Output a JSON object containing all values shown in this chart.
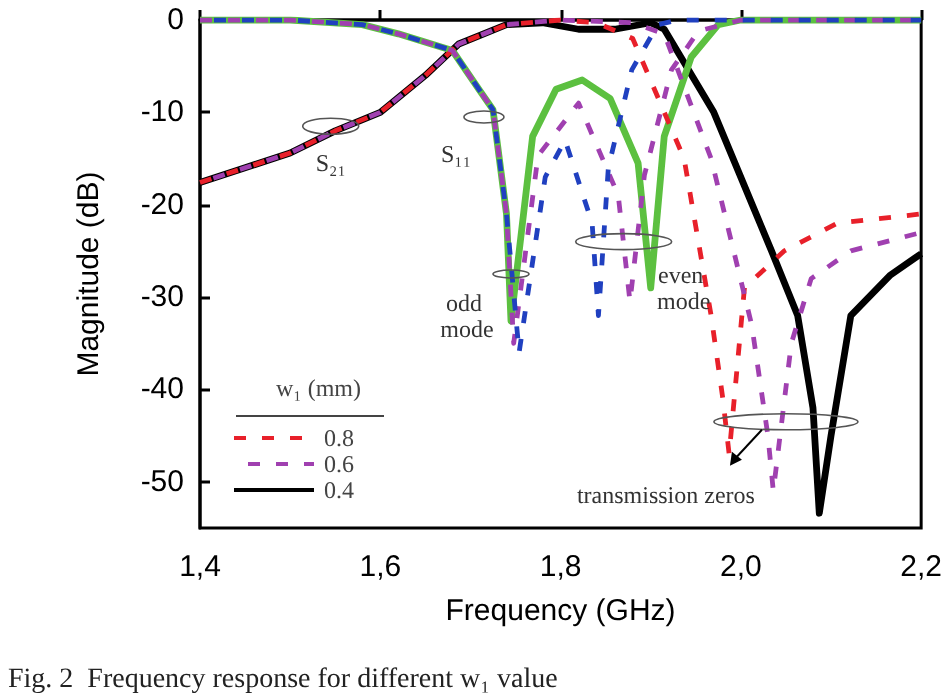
{
  "chart_data": {
    "type": "line",
    "xlabel": "Frequency (GHz)",
    "ylabel": "Magnitude (dB)",
    "legend_title": "w₁ (mm)",
    "xlim": [
      1.4,
      2.2
    ],
    "xticks": [
      {
        "value": 1.4,
        "label": "1,4"
      },
      {
        "value": 1.6,
        "label": "1,6"
      },
      {
        "value": 1.8,
        "label": "1,8"
      },
      {
        "value": 2.0,
        "label": "2,0"
      },
      {
        "value": 2.2,
        "label": "2,2"
      }
    ],
    "ylim": [
      -55,
      0
    ],
    "yticks": [
      -50,
      -40,
      -30,
      -20,
      -10,
      0
    ],
    "grid": false,
    "legend": "bottom left",
    "marker": "none",
    "series": [
      {
        "name": "0.8",
        "color": "#e8202a",
        "line_style": "dashed",
        "x": [
          1.4,
          1.45,
          1.5,
          1.55,
          1.6,
          1.65,
          1.687,
          1.74,
          1.8,
          1.84,
          1.88,
          1.937,
          1.967,
          1.98,
          1.987,
          2.004,
          2.048,
          2.107,
          2.2
        ],
        "values": [
          -17.6,
          -16,
          -14.4,
          -12,
          -10,
          -6,
          -2.6,
          -0.5,
          0,
          -0.3,
          -2,
          -15,
          -32,
          -41,
          -47,
          -29,
          -25,
          -22,
          -21
        ]
      },
      {
        "name": "0.6",
        "color": "#a040b0",
        "line_style": "dashed",
        "x": [
          1.4,
          1.45,
          1.5,
          1.55,
          1.6,
          1.65,
          1.687,
          1.74,
          1.8,
          1.88,
          1.915,
          1.967,
          2.012,
          2.03,
          2.036,
          2.056,
          2.078,
          2.122,
          2.2
        ],
        "values": [
          -17.6,
          -16,
          -14.4,
          -12,
          -10,
          -6,
          -2.6,
          -0.5,
          0,
          -0.3,
          -1.5,
          -15,
          -33,
          -45,
          -51,
          -35,
          -28,
          -25,
          -23
        ]
      },
      {
        "name": "0.4",
        "color": "#000000",
        "line_style": "solid",
        "x": [
          1.4,
          1.45,
          1.5,
          1.55,
          1.6,
          1.65,
          1.687,
          1.74,
          1.78,
          1.82,
          1.86,
          1.9,
          1.915,
          1.97,
          2.034,
          2.063,
          2.08,
          2.087,
          2.1,
          2.122,
          2.166,
          2.2
        ],
        "values": [
          -17.6,
          -16,
          -14.4,
          -12,
          -10,
          -6,
          -2.6,
          -0.5,
          -0.3,
          -1,
          -1,
          -0.3,
          -1,
          -10,
          -25,
          -32,
          -42,
          -53.4,
          -45,
          -32,
          -27.6,
          -25.3
        ]
      },
      {
        "color": "#5cc040",
        "line_style": "solid",
        "x": [
          1.4,
          1.5,
          1.58,
          1.62,
          1.68,
          1.71,
          1.725,
          1.74,
          1.745,
          1.769,
          1.795,
          1.824,
          1.855,
          1.886,
          1.9,
          1.915,
          1.945,
          1.975,
          2.0,
          2.2
        ],
        "values": [
          0,
          0,
          -0.5,
          -1.5,
          -3.3,
          -7.6,
          -9.7,
          -21,
          -32.6,
          -12.6,
          -7.5,
          -6.5,
          -8.5,
          -15.5,
          -29,
          -12.6,
          -4,
          -0.5,
          0,
          0
        ]
      },
      {
        "color": "#a040b0",
        "line_style": "dashed",
        "x": [
          1.4,
          1.5,
          1.58,
          1.62,
          1.68,
          1.71,
          1.725,
          1.74,
          1.748,
          1.775,
          1.82,
          1.864,
          1.877,
          1.893,
          1.923,
          1.953,
          2.0,
          2.2
        ],
        "values": [
          0,
          0,
          -0.5,
          -1.5,
          -3.3,
          -7.6,
          -9.7,
          -21,
          -35,
          -14.7,
          -9,
          -19,
          -30.5,
          -16.8,
          -5.4,
          -1.2,
          0,
          0
        ]
      },
      {
        "color": "#2040c0",
        "line_style": "dashed",
        "x": [
          1.4,
          1.5,
          1.58,
          1.62,
          1.68,
          1.71,
          1.725,
          1.74,
          1.754,
          1.783,
          1.805,
          1.835,
          1.842,
          1.853,
          1.879,
          1.908,
          1.93,
          2.2
        ],
        "values": [
          0,
          0,
          -0.5,
          -1.5,
          -3.3,
          -7.6,
          -9.7,
          -21,
          -36,
          -17,
          -13,
          -22,
          -32,
          -16,
          -5.4,
          -0.5,
          0,
          0
        ]
      }
    ],
    "annotations": [
      {
        "text": "S₂₁",
        "x": 1.545,
        "y": -11.5
      },
      {
        "text": "S₁₁",
        "x": 1.715,
        "y": -10.5
      },
      {
        "text": "odd mode",
        "x": 1.745,
        "y": -27.5
      },
      {
        "text": "even mode",
        "x": 1.87,
        "y": -24
      },
      {
        "text": "transmission zeros",
        "x": 2.05,
        "y": -43.5
      },
      "Fig. 2  Frequency response for different w₁ value"
    ]
  }
}
